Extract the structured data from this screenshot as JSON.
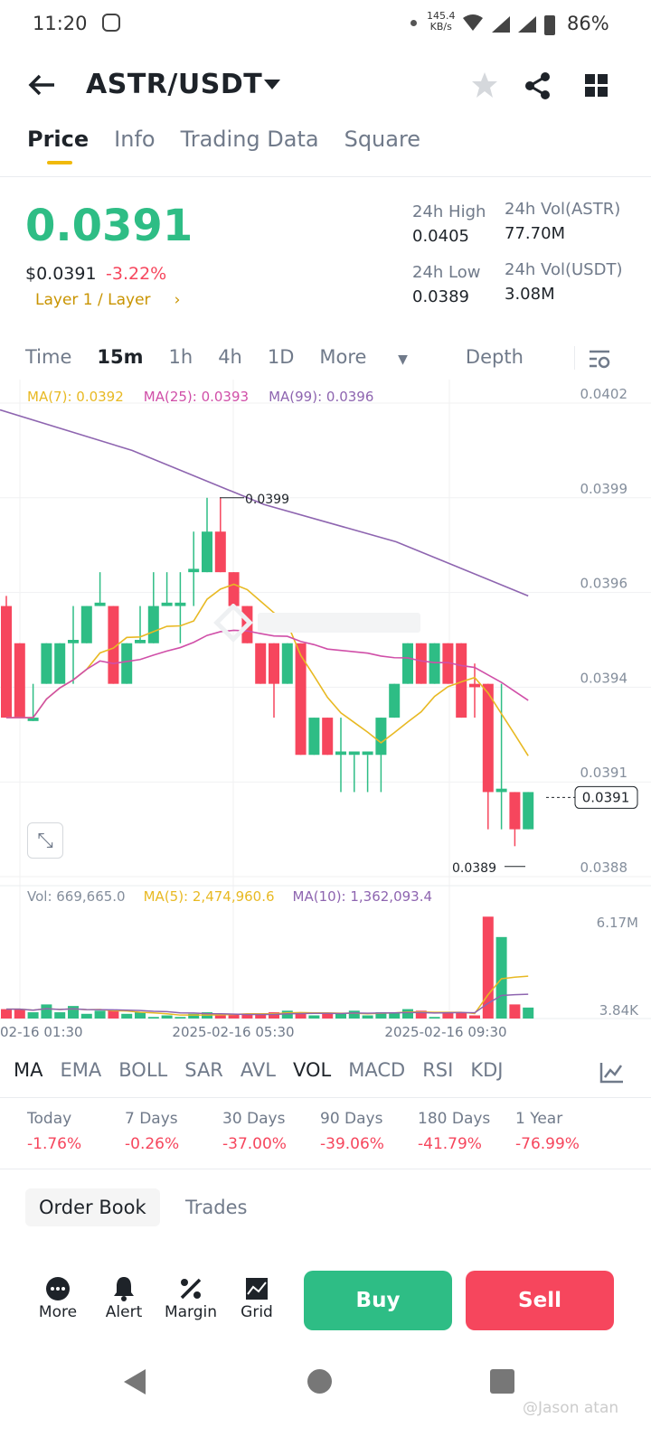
{
  "status_bar": {
    "time": "11:20",
    "net_speed": "145.4",
    "net_unit": "KB/s",
    "battery": "86%"
  },
  "header": {
    "pair": "ASTR/USDT"
  },
  "tabs": [
    "Price",
    "Info",
    "Trading Data",
    "Square"
  ],
  "ticker": {
    "last": "0.0391",
    "usd": "$0.0391",
    "change": "-3.22%",
    "tag": "Layer 1 / Layer",
    "high_label": "24h High",
    "high": "0.0405",
    "low_label": "24h Low",
    "low": "0.0389",
    "vol_astr_label": "24h Vol(ASTR)",
    "vol_astr": "77.70M",
    "vol_usdt_label": "24h Vol(USDT)",
    "vol_usdt": "3.08M"
  },
  "time_tabs": [
    "Time",
    "15m",
    "1h",
    "4h",
    "1D",
    "More",
    "Depth"
  ],
  "ma_legend": {
    "ma7": "MA(7): 0.0392",
    "ma25": "MA(25): 0.0393",
    "ma99": "MA(99): 0.0396"
  },
  "vol_legend": {
    "vol": "Vol: 669,665.0",
    "ma5": "MA(5): 2,474,960.6",
    "ma10": "MA(10): 1,362,093.4"
  },
  "colors": {
    "up": "#2ebd85",
    "down": "#f6465d",
    "ma7": "#e8b923",
    "ma25": "#d04fa8",
    "ma99": "#8e65b0",
    "accent": "#f0b90b"
  },
  "chart_data": {
    "type": "candlestick",
    "price_ticks": [
      "0.0402",
      "0.0399",
      "0.0396",
      "0.0394",
      "0.0391",
      "0.0388"
    ],
    "ylim": [
      0.0388,
      0.0402
    ],
    "high_marker": "0.0399",
    "low_marker": "0.0389",
    "last_marker": "0.0391",
    "x_ticks": [
      "02-16 01:30",
      "2025-02-16 05:30",
      "2025-02-16 09:30"
    ],
    "vol_ticks": [
      "6.17M",
      "3.84K"
    ],
    "candles": [
      [
        0.0396,
        0.03963,
        0.03927,
        0.03927
      ],
      [
        0.03949,
        0.03949,
        0.03927,
        0.03927
      ],
      [
        0.03926,
        0.03937,
        0.03926,
        0.03927
      ],
      [
        0.03937,
        0.03949,
        0.03937,
        0.03949
      ],
      [
        0.03937,
        0.03949,
        0.03937,
        0.03949
      ],
      [
        0.03949,
        0.0396,
        0.03937,
        0.0395
      ],
      [
        0.03949,
        0.0396,
        0.03949,
        0.0396
      ],
      [
        0.0396,
        0.0397,
        0.0396,
        0.03961
      ],
      [
        0.0396,
        0.0396,
        0.03937,
        0.03937
      ],
      [
        0.03937,
        0.03949,
        0.03937,
        0.03949
      ],
      [
        0.03949,
        0.0396,
        0.03949,
        0.0395
      ],
      [
        0.03949,
        0.0397,
        0.03949,
        0.0396
      ],
      [
        0.0396,
        0.0397,
        0.0396,
        0.03961
      ],
      [
        0.0396,
        0.0397,
        0.03949,
        0.03961
      ],
      [
        0.0397,
        0.03982,
        0.0396,
        0.03971
      ],
      [
        0.0397,
        0.03992,
        0.0397,
        0.03982
      ],
      [
        0.03982,
        0.03992,
        0.0397,
        0.0397
      ],
      [
        0.0397,
        0.0397,
        0.0396,
        0.0396
      ],
      [
        0.0396,
        0.0396,
        0.03949,
        0.03949
      ],
      [
        0.03949,
        0.03949,
        0.03937,
        0.03937
      ],
      [
        0.03949,
        0.03949,
        0.03927,
        0.03937
      ],
      [
        0.03937,
        0.03949,
        0.03937,
        0.03949
      ],
      [
        0.03949,
        0.03949,
        0.03916,
        0.03916
      ],
      [
        0.03916,
        0.03927,
        0.03916,
        0.03927
      ],
      [
        0.03927,
        0.03927,
        0.03916,
        0.03916
      ],
      [
        0.03916,
        0.03927,
        0.03905,
        0.03917
      ],
      [
        0.03916,
        0.03916,
        0.03905,
        0.03917
      ],
      [
        0.03916,
        0.03916,
        0.03905,
        0.03917
      ],
      [
        0.03916,
        0.03927,
        0.03905,
        0.03927
      ],
      [
        0.03927,
        0.03937,
        0.03927,
        0.03937
      ],
      [
        0.03937,
        0.03949,
        0.03937,
        0.03949
      ],
      [
        0.03949,
        0.03949,
        0.03937,
        0.03937
      ],
      [
        0.03937,
        0.03949,
        0.03937,
        0.03949
      ],
      [
        0.03949,
        0.03949,
        0.03937,
        0.03937
      ],
      [
        0.03949,
        0.03949,
        0.03927,
        0.03927
      ],
      [
        0.03937,
        0.03943,
        0.03927,
        0.03936
      ],
      [
        0.03937,
        0.03937,
        0.03894,
        0.03905
      ],
      [
        0.03905,
        0.03937,
        0.03894,
        0.03906
      ],
      [
        0.03905,
        0.03905,
        0.03889,
        0.03894
      ],
      [
        0.03894,
        0.03905,
        0.03894,
        0.03905
      ]
    ],
    "volumes": [
      0.6,
      0.6,
      0.4,
      0.9,
      0.4,
      0.8,
      0.3,
      0.5,
      0.5,
      0.3,
      0.4,
      0.1,
      0.2,
      0.1,
      0.3,
      0.4,
      0.2,
      0.3,
      0.3,
      0.3,
      0.4,
      0.5,
      0.4,
      0.2,
      0.3,
      0.3,
      0.5,
      0.2,
      0.4,
      0.4,
      0.6,
      0.5,
      0.1,
      0.4,
      0.4,
      0.2,
      6.5,
      5.2,
      0.9,
      0.7
    ],
    "ma99": [
      0.04018,
      0.04006,
      0.0399,
      0.03979,
      0.03963
    ]
  },
  "indicator_tabs": [
    "MA",
    "EMA",
    "BOLL",
    "SAR",
    "AVL",
    "VOL",
    "MACD",
    "RSI",
    "KDJ"
  ],
  "performance": [
    {
      "label": "Today",
      "value": "-1.76%"
    },
    {
      "label": "7 Days",
      "value": "-0.26%"
    },
    {
      "label": "30 Days",
      "value": "-37.00%"
    },
    {
      "label": "90 Days",
      "value": "-39.06%"
    },
    {
      "label": "180 Days",
      "value": "-41.79%"
    },
    {
      "label": "1 Year",
      "value": "-76.99%"
    }
  ],
  "book_tabs": [
    "Order Book",
    "Trades"
  ],
  "actions": [
    "More",
    "Alert",
    "Margin",
    "Grid"
  ],
  "buy": "Buy",
  "sell": "Sell",
  "watermark": "@Jason atan"
}
